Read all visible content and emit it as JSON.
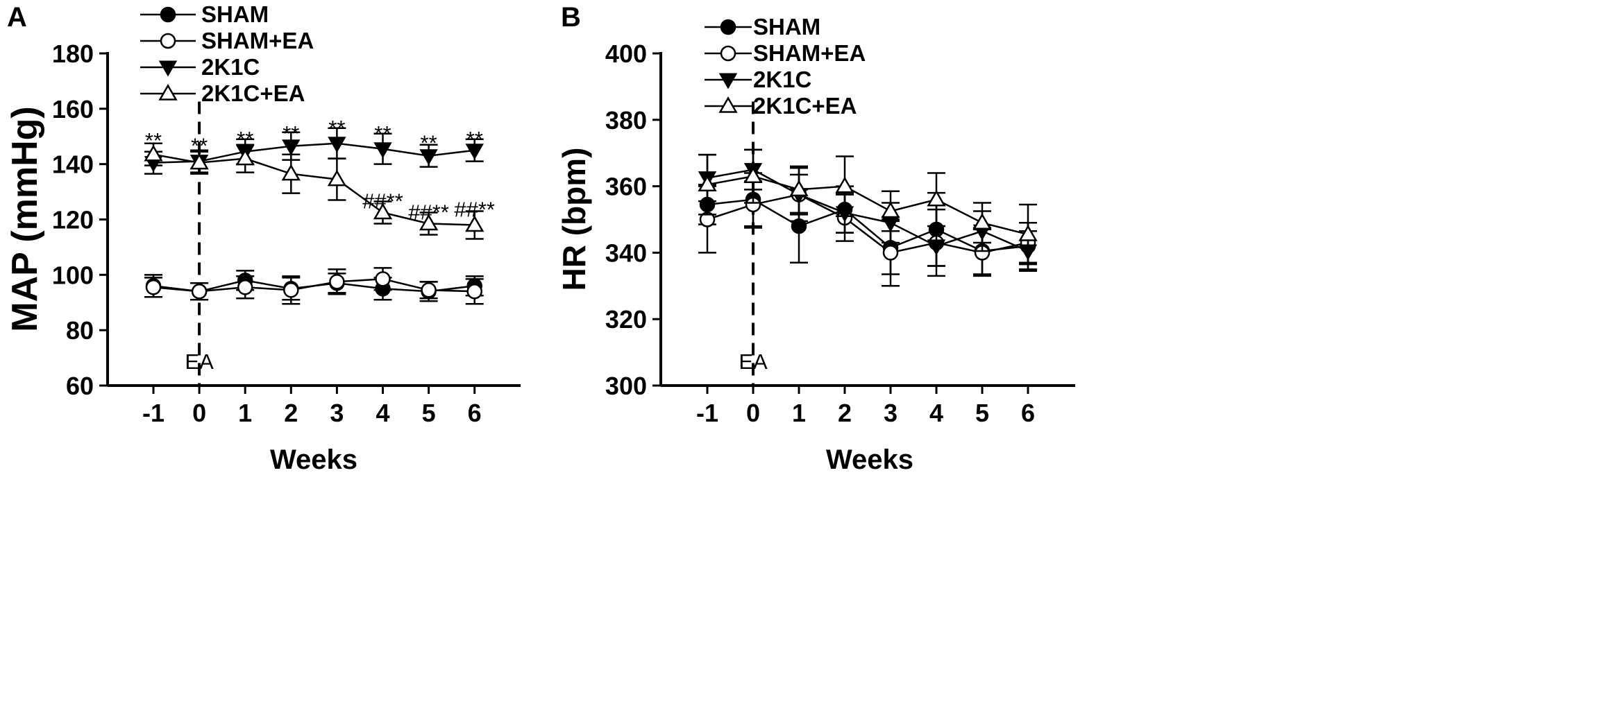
{
  "chart_data": [
    {
      "type": "line",
      "panel_label": "A",
      "xlabel": "Weeks",
      "ylabel": "MAP (mmHg)",
      "categories": [
        "-1",
        "0",
        "1",
        "2",
        "3",
        "4",
        "5",
        "6"
      ],
      "x": [
        -1,
        0,
        1,
        2,
        3,
        4,
        5,
        6
      ],
      "xlim": [
        -2,
        7
      ],
      "ylim": [
        60,
        180
      ],
      "yticks": [
        60,
        80,
        100,
        120,
        140,
        160,
        180
      ],
      "yticklabels": [
        "60",
        "80",
        "100",
        "120",
        "140",
        "160",
        "180"
      ],
      "legend": "top-left",
      "event": {
        "x": 0,
        "label": "EA"
      },
      "series": [
        {
          "name": "SHAM",
          "marker": "filled-circle",
          "values": [
            96,
            94,
            98,
            95,
            97,
            95,
            94,
            96
          ],
          "errors": [
            4,
            3,
            3.5,
            4,
            3.5,
            4,
            3.5,
            3.5
          ]
        },
        {
          "name": "SHAM+EA",
          "marker": "open-circle",
          "values": [
            95.5,
            94,
            95.5,
            94.5,
            97.5,
            98.5,
            94.5,
            94
          ],
          "errors": [
            3.5,
            3,
            4,
            5,
            4.5,
            4,
            3,
            4.5
          ]
        },
        {
          "name": "2K1C",
          "marker": "filled-down-triangle",
          "values": [
            140.5,
            141,
            144.5,
            146.5,
            147.5,
            145.5,
            143,
            145
          ],
          "errors": [
            4,
            4,
            4.5,
            5,
            5.5,
            5.5,
            4,
            4
          ]
        },
        {
          "name": "2K1C+EA",
          "marker": "open-up-triangle",
          "values": [
            143.5,
            140.5,
            142,
            136.5,
            134.5,
            122.5,
            118.5,
            118
          ],
          "errors": [
            4,
            4,
            5,
            7,
            7.5,
            4,
            4,
            5
          ]
        }
      ],
      "annotations": [
        {
          "x": -1,
          "text": "**",
          "y": 150
        },
        {
          "x": 0,
          "text": "**",
          "y": 148
        },
        {
          "x": 1,
          "text": "**",
          "y": 150.5
        },
        {
          "x": 2,
          "text": "**",
          "y": 152.5
        },
        {
          "x": 3,
          "text": "**",
          "y": 154.5
        },
        {
          "x": 4,
          "text": "**",
          "y": 152.5
        },
        {
          "x": 5,
          "text": "**",
          "y": 149
        },
        {
          "x": 6,
          "text": "**",
          "y": 150.5
        },
        {
          "x": 4,
          "text": "##**",
          "y": 128
        },
        {
          "x": 5,
          "text": "##**",
          "y": 124
        },
        {
          "x": 6,
          "text": "##**",
          "y": 125
        }
      ]
    },
    {
      "type": "line",
      "panel_label": "B",
      "xlabel": "Weeks",
      "ylabel": "HR (bpm)",
      "categories": [
        "-1",
        "0",
        "1",
        "2",
        "3",
        "4",
        "5",
        "6"
      ],
      "x": [
        -1,
        0,
        1,
        2,
        3,
        4,
        5,
        6
      ],
      "xlim": [
        -2,
        7
      ],
      "ylim": [
        300,
        400
      ],
      "yticks": [
        300,
        320,
        340,
        360,
        380,
        400
      ],
      "yticklabels": [
        "300",
        "320",
        "340",
        "360",
        "380",
        "400"
      ],
      "legend": "top-left",
      "event": {
        "x": 0,
        "label": "EA"
      },
      "series": [
        {
          "name": "SHAM",
          "marker": "filled-circle",
          "values": [
            354.5,
            356,
            348,
            353,
            341.5,
            347,
            340.5,
            342
          ],
          "errors": [
            6,
            8,
            11,
            7,
            8,
            11,
            7,
            7
          ]
        },
        {
          "name": "SHAM+EA",
          "marker": "open-circle",
          "values": [
            350,
            354.5,
            357.5,
            350.5,
            340,
            343,
            340,
            343
          ],
          "errors": [
            10,
            7,
            8,
            7,
            10,
            10,
            7,
            6
          ]
        },
        {
          "name": "2K1C",
          "marker": "filled-down-triangle",
          "values": [
            362.5,
            365,
            357.5,
            352,
            349,
            342,
            346.5,
            340.5
          ],
          "errors": [
            7,
            6,
            6,
            6,
            6,
            6,
            6,
            6
          ]
        },
        {
          "name": "2K1C+EA",
          "marker": "open-up-triangle",
          "values": [
            360.5,
            363,
            359,
            360,
            352.5,
            356,
            349,
            345.5
          ],
          "errors": [
            9,
            8,
            7,
            9,
            6,
            8,
            6,
            9
          ]
        }
      ],
      "annotations": []
    }
  ]
}
